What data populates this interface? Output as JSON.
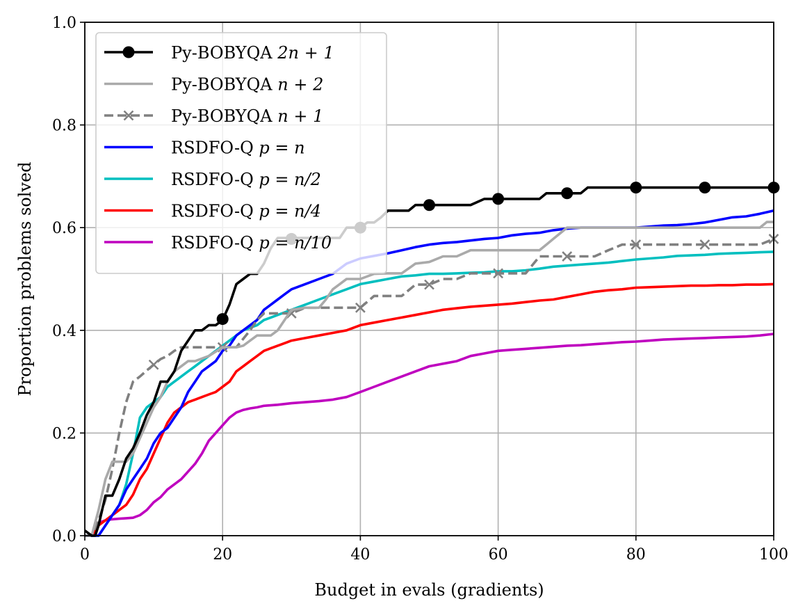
{
  "chart_data": {
    "type": "line",
    "title": "",
    "xlabel": "Budget in evals (gradients)",
    "ylabel": "Proportion problems solved",
    "xlim": [
      0,
      100
    ],
    "ylim": [
      0,
      1
    ],
    "xticks": [
      0,
      20,
      40,
      60,
      80,
      100
    ],
    "yticks": [
      0.0,
      0.2,
      0.4,
      0.6,
      0.8,
      1.0
    ],
    "xtick_labels": [
      "0",
      "20",
      "40",
      "60",
      "80",
      "100"
    ],
    "ytick_labels": [
      "0.0",
      "0.2",
      "0.4",
      "0.6",
      "0.8",
      "1.0"
    ],
    "grid": true,
    "legend_position": "top-left",
    "series": [
      {
        "name": "Py-BOBYQA 2n + 1",
        "label_prefix": "Py-BOBYQA ",
        "label_math": "2n + 1",
        "color": "#000000",
        "linestyle": "solid",
        "marker": "circle",
        "x": [
          0,
          1,
          1.5,
          2,
          3,
          4,
          5,
          6,
          7,
          8,
          9,
          10,
          11,
          12,
          13,
          14,
          15,
          16,
          17,
          18,
          19,
          20,
          21,
          22,
          23,
          24,
          25,
          26,
          27,
          28,
          29,
          30,
          31,
          32,
          33,
          34,
          35,
          36,
          37,
          38,
          39,
          40,
          41,
          42,
          43,
          44,
          45,
          46,
          47,
          48,
          49,
          50,
          52,
          54,
          56,
          58,
          60,
          62,
          64,
          66,
          67,
          68,
          69,
          70,
          72,
          73,
          74,
          76,
          78,
          80,
          82,
          84,
          86,
          88,
          90,
          92,
          94,
          96,
          98,
          100
        ],
        "y": [
          0.01,
          0.0,
          0.0,
          0.02,
          0.078,
          0.078,
          0.11,
          0.15,
          0.17,
          0.2,
          0.235,
          0.26,
          0.3,
          0.3,
          0.32,
          0.36,
          0.38,
          0.4,
          0.4,
          0.41,
          0.41,
          0.42,
          0.45,
          0.49,
          0.5,
          0.51,
          0.51,
          0.53,
          0.56,
          0.58,
          0.58,
          0.58,
          0.58,
          0.58,
          0.58,
          0.58,
          0.58,
          0.58,
          0.58,
          0.6,
          0.6,
          0.6,
          0.61,
          0.61,
          0.62,
          0.633,
          0.633,
          0.633,
          0.633,
          0.644,
          0.644,
          0.644,
          0.644,
          0.644,
          0.644,
          0.656,
          0.656,
          0.656,
          0.656,
          0.656,
          0.667,
          0.667,
          0.667,
          0.667,
          0.667,
          0.678,
          0.678,
          0.678,
          0.678,
          0.678,
          0.678,
          0.678,
          0.678,
          0.678,
          0.678,
          0.678,
          0.678,
          0.678,
          0.678,
          0.678
        ],
        "marker_x": [
          20,
          30,
          40,
          50,
          60,
          70,
          80,
          90,
          100
        ],
        "marker_y": [
          0.422,
          0.578,
          0.6,
          0.644,
          0.656,
          0.667,
          0.678,
          0.678,
          0.678
        ]
      },
      {
        "name": "Py-BOBYQA n + 2",
        "label_prefix": "Py-BOBYQA ",
        "label_math": "n + 2",
        "color": "#aaaaaa",
        "linestyle": "solid",
        "marker": "none",
        "x": [
          0,
          1,
          2,
          3,
          4,
          5,
          6,
          7,
          8,
          9,
          10,
          11,
          12,
          13,
          14,
          15,
          16,
          18,
          20,
          21,
          22,
          23,
          24,
          25,
          26,
          27,
          28,
          29,
          30,
          32,
          34,
          35,
          36,
          37,
          38,
          39,
          40,
          42,
          44,
          46,
          48,
          50,
          52,
          54,
          56,
          58,
          60,
          62,
          64,
          66,
          67,
          68,
          69,
          70,
          72,
          74,
          76,
          78,
          80,
          85,
          90,
          95,
          98,
          99,
          100
        ],
        "y": [
          0.0,
          0.0,
          0.05,
          0.11,
          0.144,
          0.144,
          0.144,
          0.16,
          0.19,
          0.22,
          0.25,
          0.27,
          0.3,
          0.32,
          0.33,
          0.34,
          0.34,
          0.35,
          0.367,
          0.367,
          0.367,
          0.37,
          0.38,
          0.39,
          0.39,
          0.39,
          0.4,
          0.42,
          0.44,
          0.444,
          0.444,
          0.46,
          0.48,
          0.49,
          0.5,
          0.5,
          0.5,
          0.51,
          0.511,
          0.511,
          0.53,
          0.533,
          0.544,
          0.544,
          0.556,
          0.556,
          0.556,
          0.556,
          0.556,
          0.556,
          0.567,
          0.578,
          0.589,
          0.6,
          0.6,
          0.6,
          0.6,
          0.6,
          0.6,
          0.6,
          0.6,
          0.6,
          0.6,
          0.611,
          0.611
        ]
      },
      {
        "name": "Py-BOBYQA n + 1",
        "label_prefix": "Py-BOBYQA ",
        "label_math": "n + 1",
        "color": "#808080",
        "linestyle": "dashed",
        "marker": "x",
        "x": [
          0,
          1,
          2,
          3,
          4,
          5,
          6,
          7,
          8,
          9,
          10,
          11,
          12,
          13,
          14,
          16,
          18,
          20,
          22,
          24,
          25,
          26,
          28,
          30,
          32,
          34,
          36,
          38,
          40,
          42,
          44,
          46,
          48,
          50,
          52,
          54,
          56,
          58,
          60,
          62,
          64,
          66,
          68,
          70,
          72,
          74,
          76,
          78,
          80,
          82,
          84,
          86,
          88,
          90,
          92,
          94,
          96,
          98,
          100
        ],
        "y": [
          0.0,
          0.0,
          0.03,
          0.07,
          0.13,
          0.2,
          0.26,
          0.3,
          0.31,
          0.322,
          0.333,
          0.344,
          0.35,
          0.36,
          0.367,
          0.367,
          0.367,
          0.367,
          0.367,
          0.4,
          0.42,
          0.433,
          0.433,
          0.433,
          0.444,
          0.444,
          0.444,
          0.444,
          0.444,
          0.467,
          0.467,
          0.467,
          0.489,
          0.489,
          0.5,
          0.5,
          0.511,
          0.511,
          0.511,
          0.511,
          0.511,
          0.544,
          0.544,
          0.544,
          0.544,
          0.544,
          0.556,
          0.567,
          0.567,
          0.567,
          0.567,
          0.567,
          0.567,
          0.567,
          0.567,
          0.567,
          0.567,
          0.567,
          0.578
        ],
        "marker_x": [
          10,
          20,
          30,
          40,
          50,
          60,
          70,
          80,
          90,
          100
        ],
        "marker_y": [
          0.333,
          0.367,
          0.433,
          0.444,
          0.489,
          0.511,
          0.544,
          0.567,
          0.567,
          0.578
        ]
      },
      {
        "name": "RSDFO-Q p = n",
        "label_prefix": "RSDFO-Q ",
        "label_math": "p = n",
        "color": "#0000ff",
        "linestyle": "solid",
        "marker": "none",
        "x": [
          0,
          2,
          3,
          4,
          5,
          6,
          7,
          8,
          9,
          10,
          11,
          12,
          13,
          14,
          15,
          16,
          17,
          18,
          19,
          20,
          21,
          22,
          23,
          24,
          25,
          26,
          27,
          28,
          29,
          30,
          32,
          34,
          36,
          38,
          40,
          42,
          44,
          46,
          48,
          50,
          52,
          54,
          56,
          58,
          60,
          62,
          64,
          66,
          68,
          70,
          72,
          74,
          76,
          78,
          80,
          82,
          84,
          86,
          88,
          90,
          92,
          94,
          96,
          98,
          100
        ],
        "y": [
          0.0,
          0.0,
          0.02,
          0.04,
          0.06,
          0.09,
          0.11,
          0.13,
          0.15,
          0.18,
          0.2,
          0.21,
          0.23,
          0.25,
          0.28,
          0.3,
          0.32,
          0.33,
          0.34,
          0.36,
          0.37,
          0.39,
          0.4,
          0.41,
          0.42,
          0.44,
          0.45,
          0.46,
          0.47,
          0.48,
          0.49,
          0.5,
          0.51,
          0.53,
          0.54,
          0.545,
          0.55,
          0.556,
          0.562,
          0.567,
          0.57,
          0.572,
          0.575,
          0.578,
          0.58,
          0.585,
          0.588,
          0.59,
          0.595,
          0.598,
          0.6,
          0.6,
          0.6,
          0.6,
          0.6,
          0.602,
          0.604,
          0.605,
          0.607,
          0.61,
          0.615,
          0.62,
          0.622,
          0.627,
          0.633
        ]
      },
      {
        "name": "RSDFO-Q p = n/2",
        "label_prefix": "RSDFO-Q ",
        "label_math": "p = n/2",
        "color": "#00bfbf",
        "linestyle": "solid",
        "marker": "none",
        "x": [
          0,
          2,
          3,
          4,
          5,
          6,
          7,
          8,
          9,
          10,
          11,
          12,
          13,
          14,
          15,
          16,
          17,
          18,
          19,
          20,
          21,
          22,
          23,
          24,
          25,
          26,
          27,
          28,
          29,
          30,
          32,
          34,
          36,
          38,
          40,
          42,
          44,
          46,
          48,
          50,
          52,
          54,
          56,
          58,
          60,
          62,
          64,
          66,
          68,
          70,
          72,
          74,
          76,
          78,
          80,
          82,
          84,
          86,
          88,
          90,
          92,
          94,
          96,
          98,
          100
        ],
        "y": [
          0.0,
          0.0,
          0.02,
          0.04,
          0.06,
          0.1,
          0.16,
          0.23,
          0.25,
          0.26,
          0.27,
          0.29,
          0.3,
          0.31,
          0.32,
          0.33,
          0.34,
          0.35,
          0.36,
          0.37,
          0.38,
          0.39,
          0.4,
          0.405,
          0.41,
          0.42,
          0.425,
          0.43,
          0.435,
          0.44,
          0.45,
          0.46,
          0.47,
          0.48,
          0.49,
          0.495,
          0.5,
          0.505,
          0.507,
          0.51,
          0.51,
          0.511,
          0.512,
          0.513,
          0.515,
          0.515,
          0.517,
          0.52,
          0.524,
          0.526,
          0.528,
          0.53,
          0.532,
          0.535,
          0.538,
          0.54,
          0.542,
          0.545,
          0.546,
          0.547,
          0.549,
          0.55,
          0.551,
          0.552,
          0.553
        ]
      },
      {
        "name": "RSDFO-Q p = n/4",
        "label_prefix": "RSDFO-Q ",
        "label_math": "p = n/4",
        "color": "#ff0000",
        "linestyle": "solid",
        "marker": "none",
        "x": [
          0,
          1,
          2,
          3,
          4,
          5,
          6,
          7,
          8,
          9,
          10,
          11,
          12,
          13,
          14,
          15,
          16,
          17,
          18,
          19,
          20,
          21,
          22,
          23,
          24,
          25,
          26,
          27,
          28,
          29,
          30,
          32,
          34,
          36,
          38,
          40,
          42,
          44,
          46,
          48,
          50,
          52,
          54,
          56,
          58,
          60,
          62,
          64,
          66,
          68,
          70,
          72,
          74,
          76,
          78,
          80,
          82,
          84,
          86,
          88,
          90,
          92,
          94,
          96,
          98,
          100
        ],
        "y": [
          0.0,
          0.0,
          0.02,
          0.03,
          0.04,
          0.05,
          0.06,
          0.08,
          0.11,
          0.13,
          0.16,
          0.19,
          0.22,
          0.24,
          0.25,
          0.26,
          0.265,
          0.27,
          0.275,
          0.28,
          0.29,
          0.3,
          0.32,
          0.33,
          0.34,
          0.35,
          0.36,
          0.365,
          0.37,
          0.375,
          0.38,
          0.385,
          0.39,
          0.395,
          0.4,
          0.41,
          0.415,
          0.42,
          0.425,
          0.43,
          0.435,
          0.44,
          0.443,
          0.446,
          0.448,
          0.45,
          0.452,
          0.455,
          0.458,
          0.46,
          0.465,
          0.47,
          0.475,
          0.478,
          0.48,
          0.483,
          0.484,
          0.485,
          0.486,
          0.487,
          0.487,
          0.488,
          0.488,
          0.489,
          0.489,
          0.49
        ]
      },
      {
        "name": "RSDFO-Q p = n/10",
        "label_prefix": "RSDFO-Q ",
        "label_math": "p = n/10",
        "color": "#bf00bf",
        "linestyle": "solid",
        "marker": "none",
        "x": [
          0,
          1,
          2,
          3,
          4,
          5,
          6,
          7,
          8,
          9,
          10,
          11,
          12,
          13,
          14,
          15,
          16,
          17,
          18,
          19,
          20,
          21,
          22,
          23,
          24,
          25,
          26,
          28,
          30,
          32,
          34,
          36,
          38,
          40,
          42,
          44,
          46,
          48,
          50,
          52,
          54,
          56,
          58,
          60,
          62,
          64,
          66,
          68,
          70,
          72,
          74,
          76,
          78,
          80,
          82,
          84,
          86,
          88,
          90,
          92,
          94,
          96,
          98,
          100
        ],
        "y": [
          0.0,
          0.0,
          0.025,
          0.03,
          0.032,
          0.033,
          0.034,
          0.035,
          0.04,
          0.05,
          0.065,
          0.075,
          0.09,
          0.1,
          0.11,
          0.125,
          0.14,
          0.16,
          0.185,
          0.2,
          0.215,
          0.23,
          0.24,
          0.245,
          0.248,
          0.25,
          0.253,
          0.255,
          0.258,
          0.26,
          0.262,
          0.265,
          0.27,
          0.28,
          0.29,
          0.3,
          0.31,
          0.32,
          0.33,
          0.335,
          0.34,
          0.35,
          0.355,
          0.36,
          0.362,
          0.364,
          0.366,
          0.368,
          0.37,
          0.371,
          0.373,
          0.375,
          0.377,
          0.378,
          0.38,
          0.382,
          0.383,
          0.384,
          0.385,
          0.386,
          0.387,
          0.388,
          0.39,
          0.393
        ]
      }
    ]
  }
}
